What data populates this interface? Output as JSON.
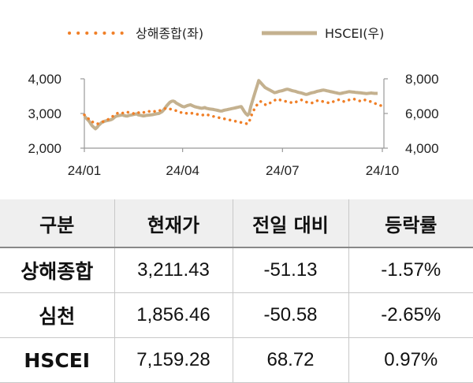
{
  "chart_data": {
    "type": "line",
    "legend": [
      {
        "name": "상해종합(좌)",
        "color": "#f07f27",
        "style": "dotted"
      },
      {
        "name": "HSCEI(우)",
        "color": "#c4b18f",
        "style": "solid"
      }
    ],
    "legend_position": "top-center",
    "x_tick_labels": [
      "24/01",
      "24/04",
      "24/07",
      "24/10"
    ],
    "x_tick_index": [
      0,
      62,
      125,
      188
    ],
    "y_left": {
      "ylim": [
        2000,
        4000
      ],
      "ticks": [
        "2,000",
        "3,000",
        "4,000"
      ]
    },
    "y_right": {
      "ylim": [
        4000,
        8000
      ],
      "ticks": [
        "4,000",
        "6,000",
        "8,000"
      ]
    },
    "grid": false,
    "series": [
      {
        "name": "상해종합(좌)",
        "axis": "left",
        "values": [
          2960,
          2930,
          2880,
          2830,
          2770,
          2760,
          2740,
          2720,
          2700,
          2710,
          2730,
          2750,
          2770,
          2790,
          2800,
          2830,
          2860,
          2890,
          2920,
          2960,
          2990,
          3010,
          3000,
          3020,
          3010,
          3030,
          3050,
          3040,
          3030,
          3020,
          3010,
          3000,
          3020,
          3040,
          3030,
          3010,
          3000,
          3020,
          3040,
          3060,
          3070,
          3060,
          3040,
          3050,
          3060,
          3070,
          3060,
          3080,
          3090,
          3100,
          3120,
          3140,
          3160,
          3150,
          3130,
          3120,
          3110,
          3090,
          3080,
          3060,
          3050,
          3030,
          3010,
          3020,
          3010,
          3000,
          2990,
          3000,
          3010,
          3000,
          2990,
          2980,
          2970,
          2960,
          2950,
          2960,
          2970,
          2950,
          2960,
          2940,
          2930,
          2920,
          2910,
          2900,
          2890,
          2880,
          2870,
          2860,
          2850,
          2840,
          2830,
          2820,
          2810,
          2800,
          2790,
          2780,
          2770,
          2760,
          2750,
          2740,
          2730,
          2720,
          2710,
          2700,
          2760,
          2900,
          3000,
          3100,
          3200,
          3250,
          3300,
          3350,
          3330,
          3290,
          3260,
          3240,
          3280,
          3300,
          3320,
          3350,
          3380,
          3400,
          3420,
          3400,
          3380,
          3370,
          3360,
          3350,
          3340,
          3330,
          3320,
          3310,
          3300,
          3320,
          3340,
          3360,
          3380,
          3390,
          3360,
          3340,
          3330,
          3320,
          3310,
          3300,
          3310,
          3330,
          3350,
          3370,
          3380,
          3360,
          3350,
          3340,
          3330,
          3320,
          3310,
          3300,
          3320,
          3340,
          3360,
          3380,
          3390,
          3400,
          3380,
          3360,
          3340,
          3350,
          3370,
          3390,
          3400,
          3410,
          3420,
          3400,
          3380,
          3370,
          3360,
          3350,
          3370,
          3390,
          3380,
          3360,
          3350,
          3340,
          3320,
          3300,
          3280,
          3260,
          3240,
          3230,
          3220,
          3211
        ]
      },
      {
        "name": "HSCEI(우)",
        "axis": "right",
        "values": [
          5850,
          5750,
          5650,
          5560,
          5420,
          5280,
          5200,
          5120,
          5200,
          5320,
          5400,
          5480,
          5520,
          5560,
          5580,
          5600,
          5620,
          5650,
          5700,
          5780,
          5840,
          5870,
          5880,
          5900,
          5920,
          5880,
          5860,
          5850,
          5880,
          5900,
          5920,
          5940,
          5960,
          5980,
          5920,
          5900,
          5880,
          5860,
          5870,
          5890,
          5900,
          5910,
          5920,
          5930,
          5950,
          5970,
          5990,
          6000,
          6050,
          6100,
          6200,
          6320,
          6450,
          6550,
          6650,
          6700,
          6720,
          6680,
          6600,
          6550,
          6500,
          6450,
          6400,
          6380,
          6420,
          6460,
          6480,
          6500,
          6460,
          6420,
          6380,
          6360,
          6340,
          6320,
          6300,
          6320,
          6340,
          6300,
          6280,
          6260,
          6250,
          6240,
          6220,
          6200,
          6180,
          6160,
          6140,
          6150,
          6180,
          6200,
          6220,
          6240,
          6260,
          6280,
          6300,
          6320,
          6340,
          6360,
          6380,
          6400,
          6250,
          6100,
          5980,
          5900,
          6000,
          6400,
          6700,
          7000,
          7300,
          7600,
          7900,
          7800,
          7700,
          7600,
          7500,
          7450,
          7400,
          7350,
          7300,
          7250,
          7200,
          7220,
          7250,
          7280,
          7300,
          7320,
          7350,
          7380,
          7400,
          7380,
          7350,
          7320,
          7300,
          7280,
          7250,
          7220,
          7200,
          7180,
          7150,
          7120,
          7100,
          7120,
          7150,
          7180,
          7200,
          7220,
          7250,
          7280,
          7300,
          7320,
          7340,
          7350,
          7330,
          7310,
          7290,
          7270,
          7250,
          7230,
          7210,
          7190,
          7170,
          7150,
          7160,
          7180,
          7200,
          7220,
          7240,
          7260,
          7250,
          7240,
          7230,
          7220,
          7210,
          7200,
          7190,
          7180,
          7170,
          7160,
          7150,
          7160,
          7170,
          7180,
          7170,
          7160,
          7160,
          7159
        ]
      }
    ]
  },
  "table": {
    "headers": [
      "구분",
      "현재가",
      "전일 대비",
      "등락률"
    ],
    "rows": [
      [
        "상해종합",
        "3,211.43",
        "-51.13",
        "-1.57%"
      ],
      [
        "심천",
        "1,856.46",
        "-50.58",
        "-2.65%"
      ],
      [
        "HSCEI",
        "7,159.28",
        "68.72",
        "0.97%"
      ]
    ]
  }
}
